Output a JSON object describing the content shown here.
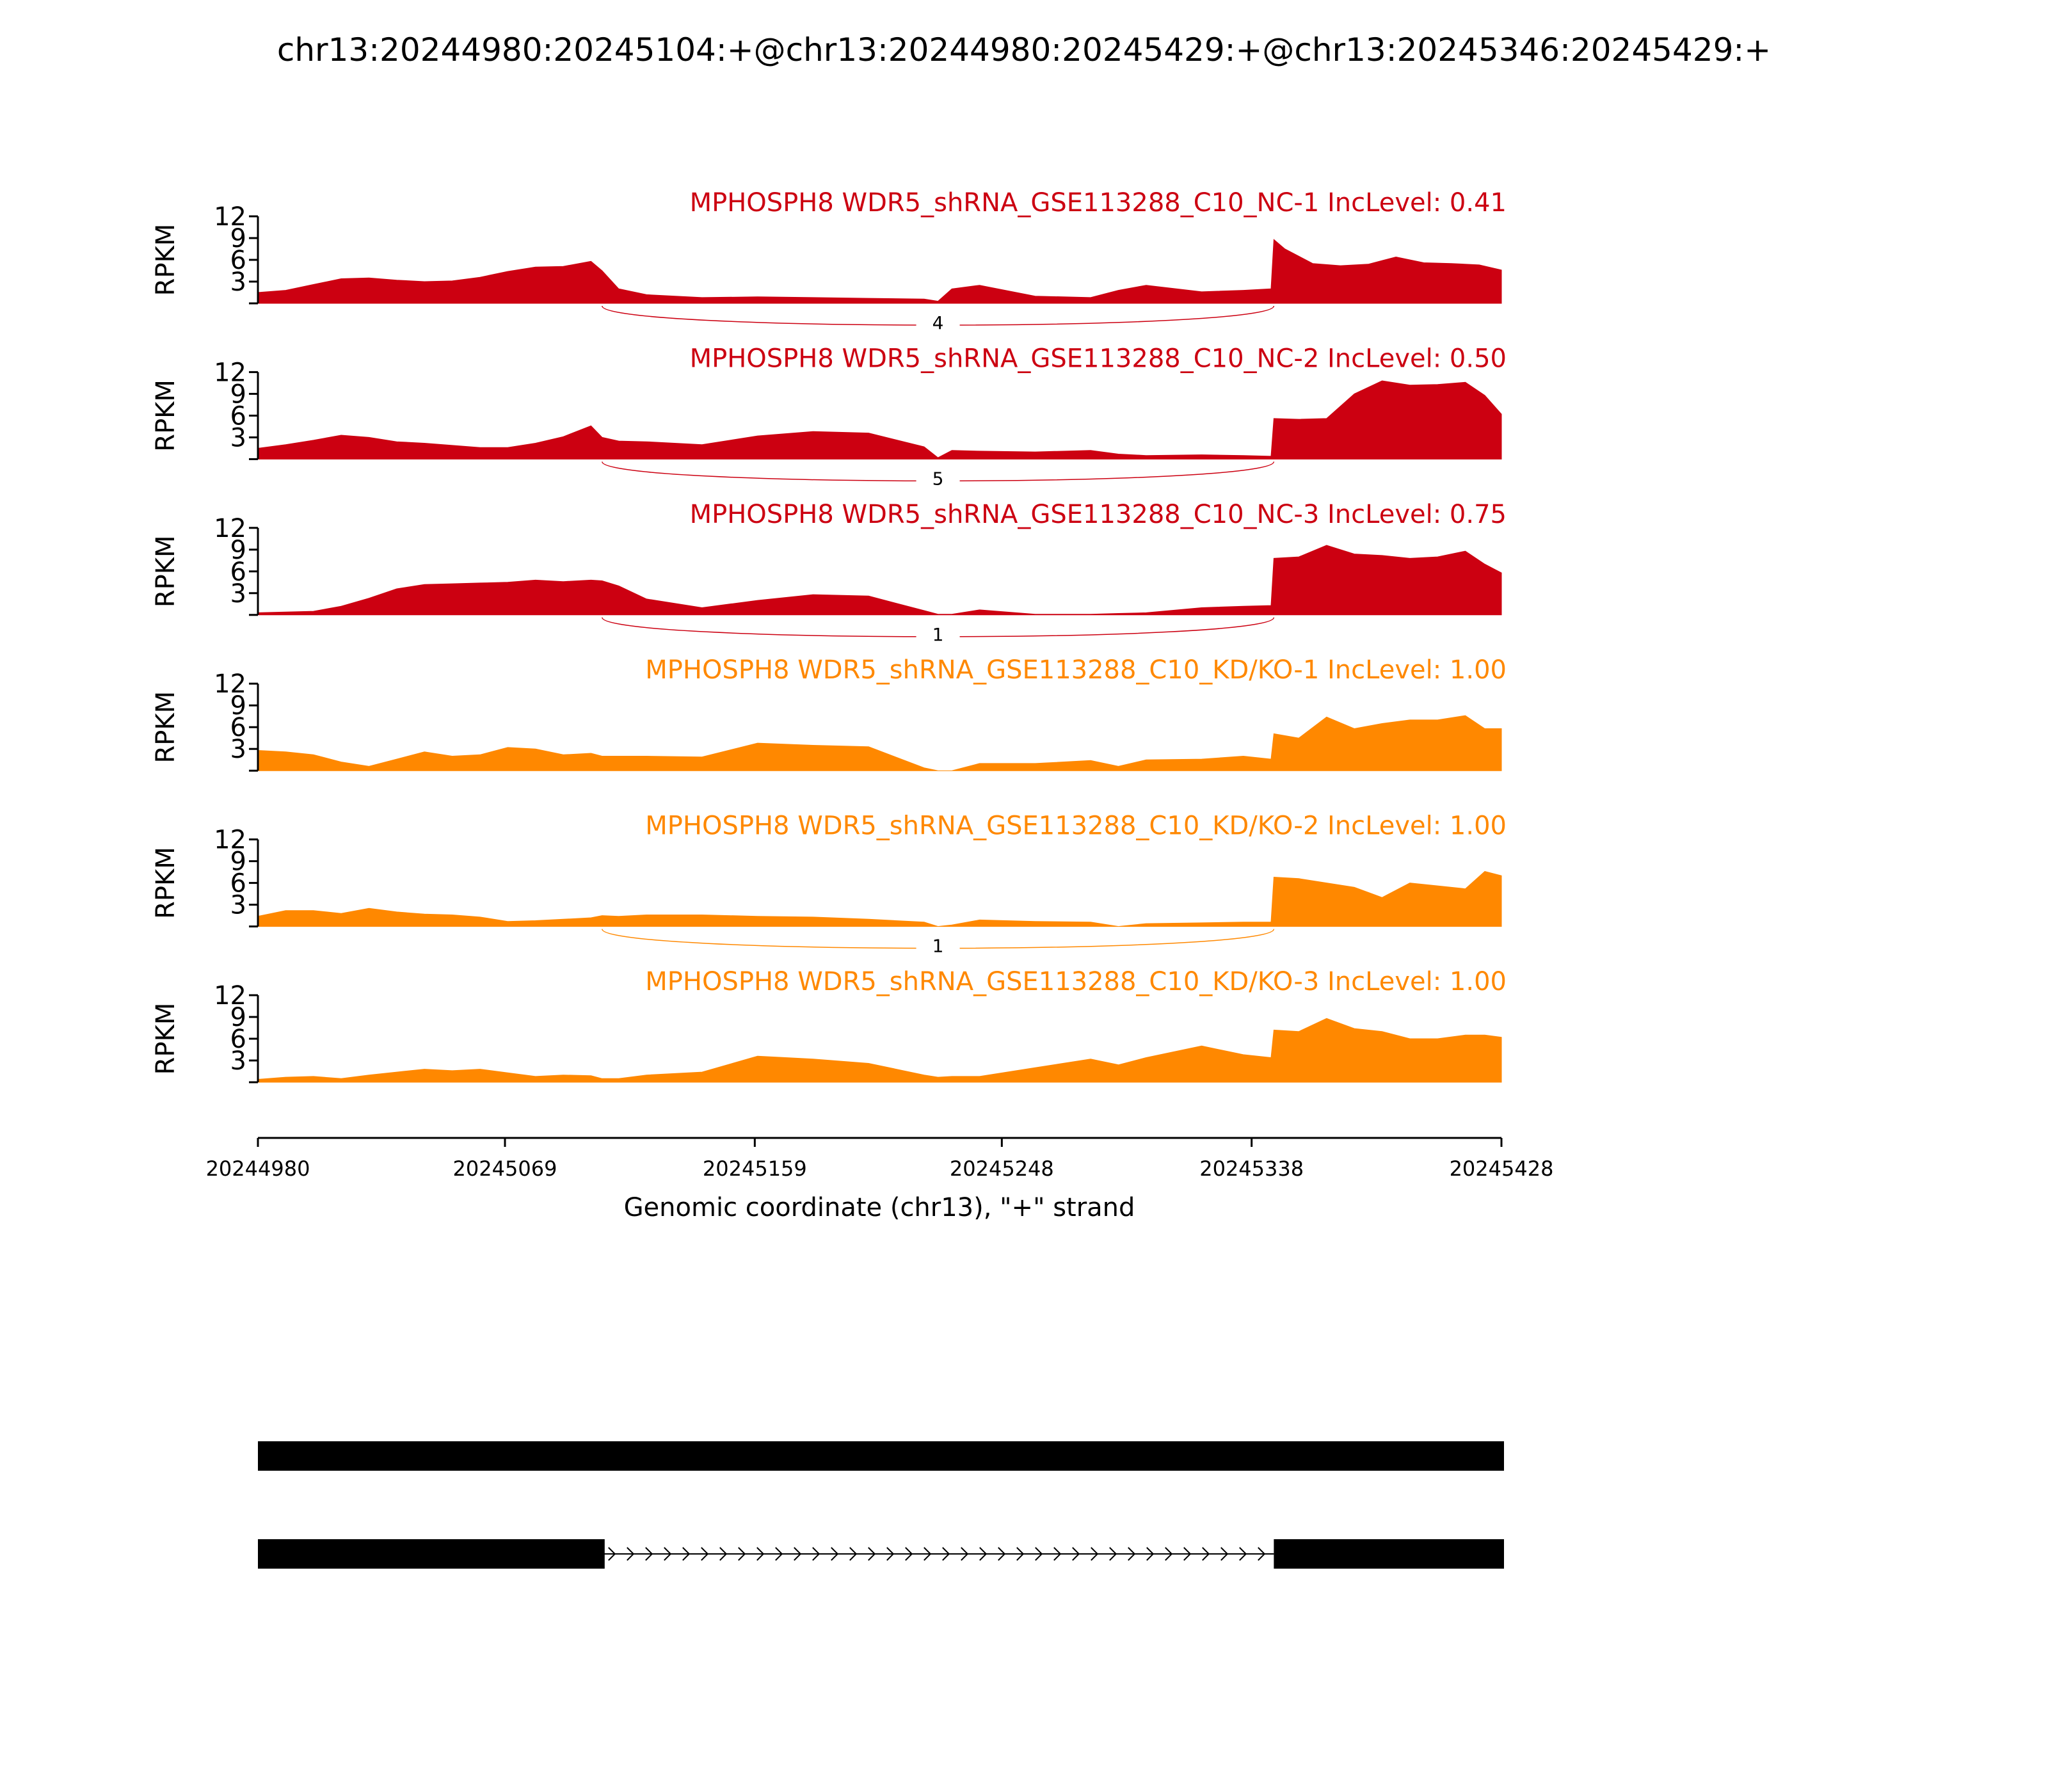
{
  "chart_data": {
    "type": "area",
    "title": "chr13:20244980:20245104:+@chr13:20244980:20245429:+@chr13:20245346:20245429:+",
    "ylabel": "RPKM",
    "xlabel": "Genomic coordinate (chr13), \"+\" strand",
    "xlim": [
      20244980,
      20245428
    ],
    "ylim": [
      0,
      12
    ],
    "yticks": [
      "3",
      "6",
      "9",
      "12"
    ],
    "xticks": [
      "20244980",
      "20245069",
      "20245159",
      "20245248",
      "20245338",
      "20245428"
    ],
    "colors": {
      "NC": "#cc0011",
      "KD": "#ff8800"
    },
    "junction": {
      "start": 20245104,
      "end": 20245346
    },
    "panels": [
      {
        "label": "MPHOSPH8 WDR5_shRNA_GSE113288_C10_NC-1 IncLevel: 0.41",
        "group": "NC",
        "junction_count": "4",
        "x": [
          20244980,
          20244990,
          20245000,
          20245010,
          20245020,
          20245030,
          20245040,
          20245050,
          20245060,
          20245070,
          20245080,
          20245090,
          20245100,
          20245104,
          20245110,
          20245120,
          20245140,
          20245160,
          20245180,
          20245200,
          20245220,
          20245225,
          20245230,
          20245240,
          20245260,
          20245280,
          20245290,
          20245300,
          20245320,
          20245335,
          20245345,
          20245346,
          20245350,
          20245360,
          20245370,
          20245380,
          20245390,
          20245400,
          20245410,
          20245420,
          20245428
        ],
        "y": [
          1.5,
          1.8,
          2.6,
          3.4,
          3.5,
          3.2,
          3.0,
          3.1,
          3.6,
          4.4,
          5.0,
          5.1,
          5.8,
          4.5,
          2.0,
          1.2,
          0.8,
          0.9,
          0.8,
          0.7,
          0.6,
          0.3,
          2.0,
          2.5,
          1.0,
          0.8,
          1.8,
          2.5,
          1.6,
          1.8,
          2.0,
          8.8,
          7.5,
          5.5,
          5.2,
          5.4,
          6.4,
          5.6,
          5.5,
          5.3,
          4.6
        ]
      },
      {
        "label": "MPHOSPH8 WDR5_shRNA_GSE113288_C10_NC-2 IncLevel: 0.50",
        "group": "NC",
        "junction_count": "5",
        "x": [
          20244980,
          20244990,
          20245000,
          20245010,
          20245020,
          20245030,
          20245040,
          20245050,
          20245060,
          20245070,
          20245080,
          20245090,
          20245100,
          20245104,
          20245110,
          20245120,
          20245140,
          20245160,
          20245180,
          20245200,
          20245220,
          20245225,
          20245230,
          20245240,
          20245260,
          20245280,
          20245290,
          20245300,
          20245320,
          20245335,
          20245345,
          20245346,
          20245355,
          20245365,
          20245375,
          20245385,
          20245395,
          20245405,
          20245415,
          20245422,
          20245428
        ],
        "y": [
          1.5,
          2.0,
          2.6,
          3.3,
          3.0,
          2.4,
          2.2,
          1.9,
          1.6,
          1.6,
          2.2,
          3.1,
          4.6,
          3.0,
          2.5,
          2.4,
          2.0,
          3.2,
          3.8,
          3.6,
          1.7,
          0.2,
          1.2,
          1.1,
          1.0,
          1.2,
          0.7,
          0.5,
          0.6,
          0.5,
          0.4,
          5.6,
          5.5,
          5.6,
          9.0,
          10.8,
          10.2,
          10.3,
          10.6,
          8.8,
          6.2
        ]
      },
      {
        "label": "MPHOSPH8 WDR5_shRNA_GSE113288_C10_NC-3 IncLevel: 0.75",
        "group": "NC",
        "junction_count": "1",
        "x": [
          20244980,
          20244990,
          20245000,
          20245010,
          20245020,
          20245030,
          20245040,
          20245050,
          20245060,
          20245070,
          20245080,
          20245090,
          20245100,
          20245104,
          20245110,
          20245120,
          20245140,
          20245160,
          20245180,
          20245200,
          20245220,
          20245225,
          20245230,
          20245240,
          20245260,
          20245280,
          20245290,
          20245300,
          20245320,
          20245335,
          20245345,
          20245346,
          20245355,
          20245365,
          20245375,
          20245385,
          20245395,
          20245405,
          20245415,
          20245422,
          20245428
        ],
        "y": [
          0.3,
          0.4,
          0.5,
          1.2,
          2.3,
          3.6,
          4.2,
          4.3,
          4.4,
          4.5,
          4.8,
          4.6,
          4.8,
          4.7,
          4.0,
          2.2,
          1.0,
          2.0,
          2.8,
          2.6,
          0.6,
          0.1,
          0.1,
          0.7,
          0.1,
          0.1,
          0.2,
          0.3,
          1.0,
          1.2,
          1.3,
          7.8,
          8.0,
          9.6,
          8.4,
          8.2,
          7.8,
          8.0,
          8.8,
          7.0,
          5.8
        ]
      },
      {
        "label": "MPHOSPH8 WDR5_shRNA_GSE113288_C10_KD/KO-1 IncLevel: 1.00",
        "group": "KD",
        "junction_count": "",
        "x": [
          20244980,
          20244990,
          20245000,
          20245010,
          20245020,
          20245030,
          20245040,
          20245050,
          20245060,
          20245070,
          20245080,
          20245090,
          20245100,
          20245104,
          20245110,
          20245120,
          20245140,
          20245160,
          20245180,
          20245200,
          20245220,
          20245225,
          20245230,
          20245240,
          20245260,
          20245280,
          20245290,
          20245300,
          20245320,
          20245335,
          20245345,
          20245346,
          20245355,
          20245365,
          20245375,
          20245385,
          20245395,
          20245405,
          20245415,
          20245422,
          20245428
        ],
        "y": [
          2.8,
          2.6,
          2.2,
          1.2,
          0.6,
          1.6,
          2.6,
          2.0,
          2.2,
          3.2,
          3.0,
          2.2,
          2.4,
          2.0,
          2.0,
          2.0,
          1.9,
          3.8,
          3.5,
          3.3,
          0.4,
          0.0,
          0.0,
          1.0,
          1.0,
          1.4,
          0.6,
          1.5,
          1.6,
          2.0,
          1.6,
          5.1,
          4.5,
          7.4,
          5.8,
          6.5,
          7.0,
          7.0,
          7.6,
          5.8,
          5.8
        ]
      },
      {
        "label": "MPHOSPH8 WDR5_shRNA_GSE113288_C10_KD/KO-2 IncLevel: 1.00",
        "group": "KD",
        "junction_count": "1",
        "x": [
          20244980,
          20244990,
          20245000,
          20245010,
          20245020,
          20245030,
          20245040,
          20245050,
          20245060,
          20245070,
          20245080,
          20245090,
          20245100,
          20245104,
          20245110,
          20245120,
          20245140,
          20245160,
          20245180,
          20245200,
          20245220,
          20245225,
          20245230,
          20245240,
          20245260,
          20245280,
          20245290,
          20245300,
          20245320,
          20245335,
          20245345,
          20245346,
          20245355,
          20245365,
          20245375,
          20245385,
          20245395,
          20245405,
          20245415,
          20245422,
          20245428
        ],
        "y": [
          1.4,
          2.2,
          2.2,
          1.8,
          2.5,
          2.0,
          1.7,
          1.6,
          1.3,
          0.7,
          0.8,
          1.0,
          1.2,
          1.5,
          1.4,
          1.6,
          1.6,
          1.4,
          1.3,
          1.0,
          0.6,
          0.0,
          0.2,
          0.9,
          0.7,
          0.6,
          0.0,
          0.4,
          0.5,
          0.6,
          0.6,
          6.8,
          6.6,
          6.0,
          5.4,
          4.0,
          6.0,
          5.6,
          5.2,
          7.6,
          7.0
        ]
      },
      {
        "label": "MPHOSPH8 WDR5_shRNA_GSE113288_C10_KD/KO-3 IncLevel: 1.00",
        "group": "KD",
        "junction_count": "",
        "x": [
          20244980,
          20244990,
          20245000,
          20245010,
          20245020,
          20245030,
          20245040,
          20245050,
          20245060,
          20245070,
          20245080,
          20245090,
          20245100,
          20245104,
          20245110,
          20245120,
          20245140,
          20245160,
          20245180,
          20245200,
          20245220,
          20245225,
          20245230,
          20245240,
          20245260,
          20245280,
          20245290,
          20245300,
          20245320,
          20245335,
          20245345,
          20245346,
          20245355,
          20245365,
          20245375,
          20245385,
          20245395,
          20245405,
          20245415,
          20245422,
          20245428
        ],
        "y": [
          0.4,
          0.7,
          0.8,
          0.5,
          1.0,
          1.4,
          1.8,
          1.6,
          1.8,
          1.3,
          0.8,
          1.0,
          0.9,
          0.5,
          0.5,
          1.0,
          1.4,
          3.6,
          3.2,
          2.6,
          1.0,
          0.7,
          0.8,
          0.8,
          2.0,
          3.2,
          2.4,
          3.4,
          5.0,
          3.8,
          3.4,
          7.2,
          7.0,
          8.8,
          7.4,
          7.0,
          6.0,
          6.0,
          6.5,
          6.5,
          6.2
        ]
      }
    ],
    "isoforms": [
      {
        "exons": [
          [
            20244980,
            20245428
          ]
        ]
      },
      {
        "exons": [
          [
            20244980,
            20245104
          ],
          [
            20245346,
            20245428
          ]
        ]
      }
    ]
  }
}
